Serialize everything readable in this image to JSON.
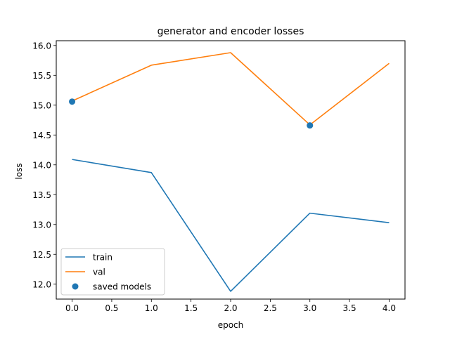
{
  "chart_data": {
    "type": "line",
    "title": "generator and encoder losses",
    "xlabel": "epoch",
    "ylabel": "loss",
    "xlim": [
      -0.2,
      4.2
    ],
    "ylim": [
      11.75,
      16.08
    ],
    "xticks": [
      0.0,
      0.5,
      1.0,
      1.5,
      2.0,
      2.5,
      3.0,
      3.5,
      4.0
    ],
    "xtick_labels": [
      "0.0",
      "0.5",
      "1.0",
      "1.5",
      "2.0",
      "2.5",
      "3.0",
      "3.5",
      "4.0"
    ],
    "yticks": [
      12.0,
      12.5,
      13.0,
      13.5,
      14.0,
      14.5,
      15.0,
      15.5,
      16.0
    ],
    "ytick_labels": [
      "12.0",
      "12.5",
      "13.0",
      "13.5",
      "14.0",
      "14.5",
      "15.0",
      "15.5",
      "16.0"
    ],
    "grid": false,
    "legend": "lower-left",
    "series": [
      {
        "name": "train",
        "kind": "line",
        "color": "#1f77b4",
        "x": [
          0,
          1,
          2,
          3,
          4
        ],
        "y": [
          14.09,
          13.87,
          11.88,
          13.19,
          13.03
        ]
      },
      {
        "name": "val",
        "kind": "line",
        "color": "#ff7f0e",
        "x": [
          0,
          1,
          2,
          3,
          4
        ],
        "y": [
          15.07,
          15.67,
          15.88,
          14.67,
          15.7
        ]
      },
      {
        "name": "saved models",
        "kind": "scatter",
        "color": "#1f77b4",
        "x": [
          0,
          3
        ],
        "y": [
          15.06,
          14.66
        ]
      }
    ]
  }
}
